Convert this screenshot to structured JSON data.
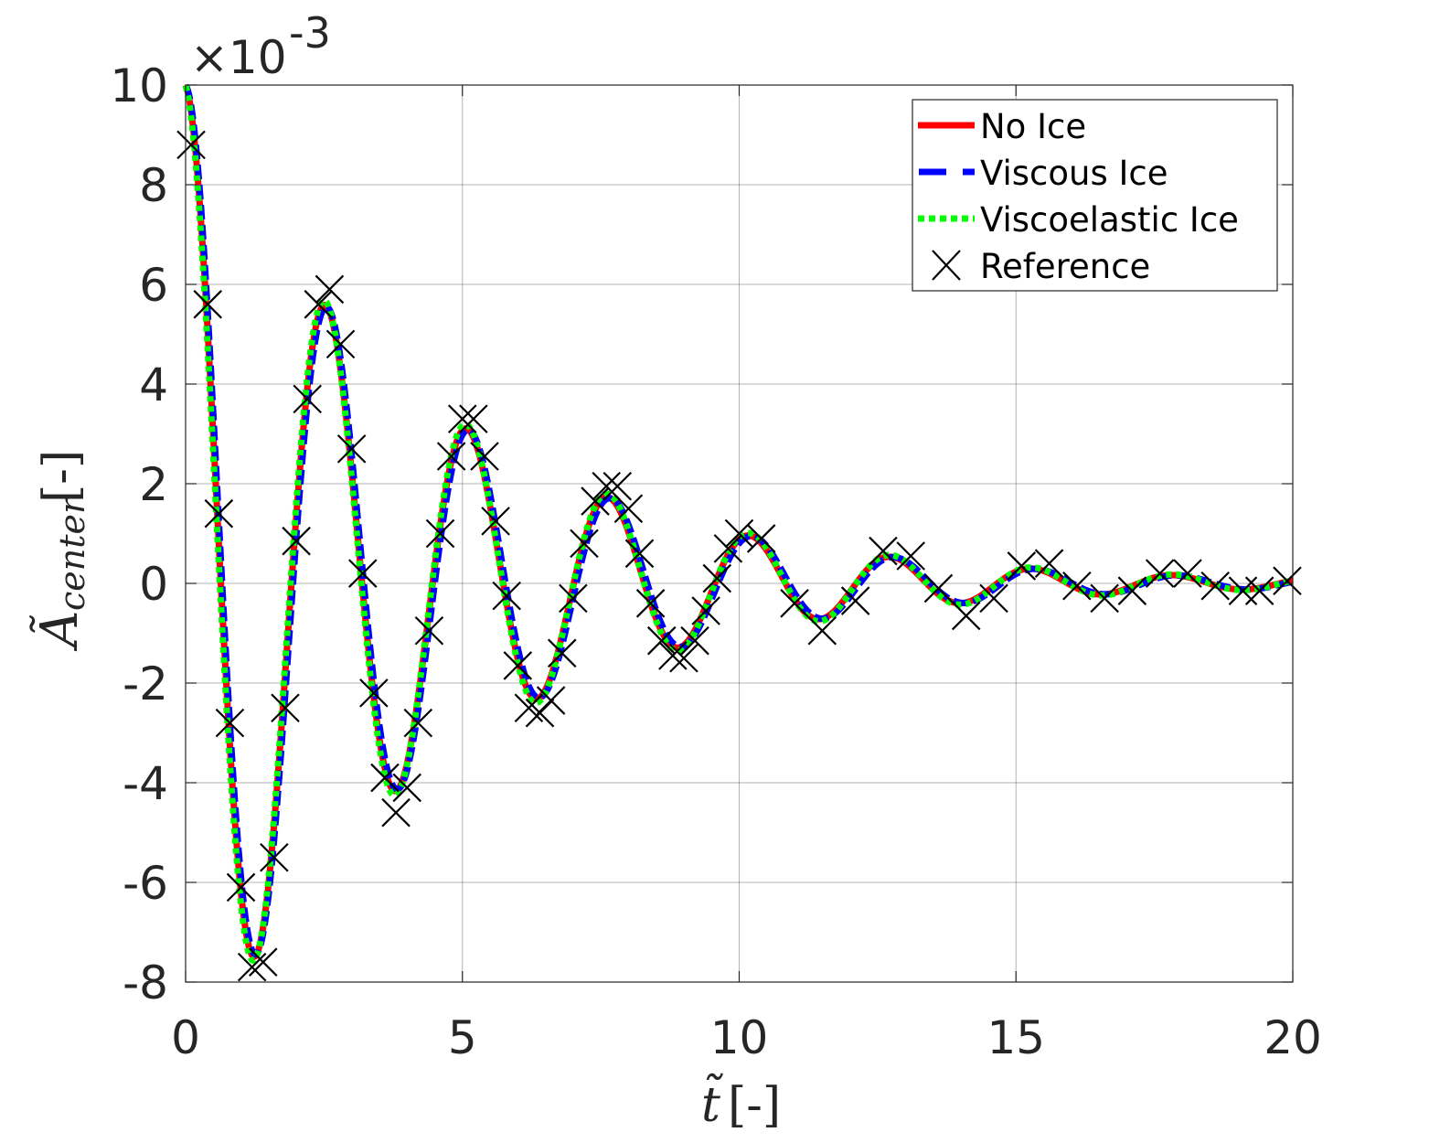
{
  "chart_data": {
    "type": "line",
    "title": "",
    "xlabel": {
      "symbol": "t̃",
      "unit": "[-]"
    },
    "ylabel": {
      "symbol": "Ã",
      "subscript": "center",
      "unit": "[-]"
    },
    "y_exponent": {
      "base": "×10",
      "power": "-3"
    },
    "xlim": [
      0,
      20
    ],
    "ylim": [
      -8,
      10
    ],
    "xticks": [
      0,
      5,
      10,
      15,
      20
    ],
    "yticks": [
      -8,
      -6,
      -4,
      -2,
      0,
      2,
      4,
      6,
      8,
      10
    ],
    "xtick_labels": [
      "0",
      "5",
      "10",
      "15",
      "20"
    ],
    "ytick_labels": [
      "-8",
      "-6",
      "-4",
      "-2",
      "0",
      "2",
      "4",
      "6",
      "8",
      "10"
    ],
    "grid": true,
    "legend_position": "top-right",
    "series": [
      {
        "name": "No Ice",
        "style": "solid",
        "color": "#ff0000",
        "model": {
          "amplitude": 10,
          "decay": 0.23,
          "period": 2.55,
          "phase_shift": 0.0
        }
      },
      {
        "name": "Viscous Ice",
        "style": "dashed",
        "color": "#0000ff",
        "model": {
          "amplitude": 10,
          "decay": 0.23,
          "period": 2.56,
          "phase_shift": 0.02
        }
      },
      {
        "name": "Viscoelastic Ice",
        "style": "dotted",
        "color": "#00ff00",
        "model": {
          "amplitude": 10,
          "decay": 0.225,
          "period": 2.555,
          "phase_shift": -0.02
        }
      },
      {
        "name": "Reference",
        "style": "markers",
        "marker": "x",
        "color": "#000000",
        "points": [
          [
            0.1,
            8.8
          ],
          [
            0.4,
            5.6
          ],
          [
            0.6,
            1.4
          ],
          [
            0.8,
            -2.8
          ],
          [
            1.0,
            -6.1
          ],
          [
            1.2,
            -7.7
          ],
          [
            1.4,
            -7.6
          ],
          [
            1.6,
            -5.5
          ],
          [
            1.8,
            -2.5
          ],
          [
            2.0,
            0.85
          ],
          [
            2.2,
            3.7
          ],
          [
            2.4,
            5.6
          ],
          [
            2.6,
            5.9
          ],
          [
            2.8,
            4.8
          ],
          [
            3.0,
            2.7
          ],
          [
            3.2,
            0.2
          ],
          [
            3.4,
            -2.2
          ],
          [
            3.6,
            -3.9
          ],
          [
            3.8,
            -4.6
          ],
          [
            4.0,
            -4.1
          ],
          [
            4.2,
            -2.8
          ],
          [
            4.4,
            -0.95
          ],
          [
            4.6,
            1.0
          ],
          [
            4.8,
            2.55
          ],
          [
            5.0,
            3.3
          ],
          [
            5.2,
            3.3
          ],
          [
            5.4,
            2.55
          ],
          [
            5.6,
            1.25
          ],
          [
            5.8,
            -0.25
          ],
          [
            6.0,
            -1.65
          ],
          [
            6.2,
            -2.5
          ],
          [
            6.4,
            -2.6
          ],
          [
            6.6,
            -2.35
          ],
          [
            6.8,
            -1.4
          ],
          [
            7.0,
            -0.3
          ],
          [
            7.2,
            0.8
          ],
          [
            7.4,
            1.65
          ],
          [
            7.6,
            1.95
          ],
          [
            7.8,
            1.95
          ],
          [
            8.0,
            1.5
          ],
          [
            8.2,
            0.6
          ],
          [
            8.4,
            -0.4
          ],
          [
            8.6,
            -1.15
          ],
          [
            8.8,
            -1.45
          ],
          [
            9.0,
            -1.5
          ],
          [
            9.2,
            -1.15
          ],
          [
            9.4,
            -0.55
          ],
          [
            9.6,
            0.1
          ],
          [
            9.8,
            0.7
          ],
          [
            10.0,
            1.0
          ],
          [
            10.4,
            0.9
          ],
          [
            11.0,
            -0.4
          ],
          [
            11.5,
            -0.95
          ],
          [
            12.1,
            -0.35
          ],
          [
            12.6,
            0.65
          ],
          [
            13.1,
            0.55
          ],
          [
            13.6,
            -0.1
          ],
          [
            14.1,
            -0.65
          ],
          [
            14.6,
            -0.3
          ],
          [
            15.1,
            0.35
          ],
          [
            15.6,
            0.4
          ],
          [
            16.1,
            -0.05
          ],
          [
            16.6,
            -0.3
          ],
          [
            17.1,
            -0.15
          ],
          [
            17.6,
            0.2
          ],
          [
            18.1,
            0.2
          ],
          [
            18.6,
            -0.05
          ],
          [
            19.1,
            -0.15
          ],
          [
            19.4,
            -0.15
          ],
          [
            19.9,
            0.05
          ]
        ]
      }
    ]
  }
}
